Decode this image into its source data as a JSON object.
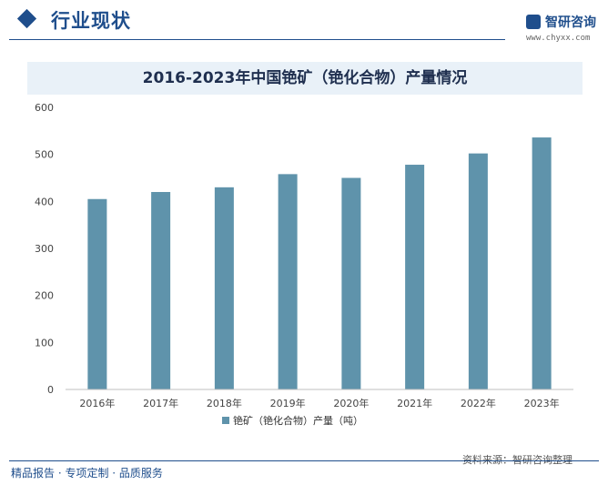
{
  "header": {
    "section_title": "行业现状",
    "logo_name": "智研咨询",
    "logo_url": "www.chyxx.com"
  },
  "footer": {
    "tagline": "精品报告 · 专项定制 · 品质服务",
    "source": "资料来源：智研咨询整理"
  },
  "colors": {
    "bar": "#5f93ab",
    "accent": "#1f4e8c"
  },
  "chart_data": {
    "type": "bar",
    "title": "2016-2023年中国铯矿（铯化合物）产量情况",
    "categories": [
      "2016年",
      "2017年",
      "2018年",
      "2019年",
      "2020年",
      "2021年",
      "2022年",
      "2023年"
    ],
    "series": [
      {
        "name": "铯矿（铯化合物）产量（吨）",
        "values": [
          405,
          420,
          430,
          458,
          450,
          478,
          502,
          536
        ]
      }
    ],
    "ylim": [
      0,
      600
    ],
    "yticks": [
      0,
      100,
      200,
      300,
      400,
      500,
      600
    ],
    "grid": false,
    "legend": "bottom"
  }
}
